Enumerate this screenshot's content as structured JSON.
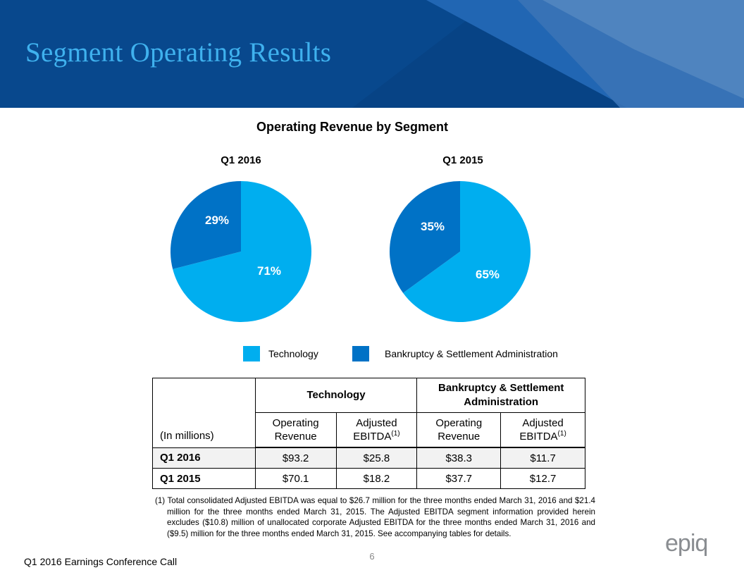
{
  "header": {
    "title": "Segment Operating Results",
    "colors": {
      "band": "#074385",
      "accent": "#2166b3",
      "title": "#3fb1ee"
    }
  },
  "chart": {
    "title": "Operating Revenue by Segment"
  },
  "chart_data": [
    {
      "type": "pie",
      "title": "Q1 2016",
      "categories": [
        "Technology",
        "Bankruptcy & Settlement Administration"
      ],
      "values": [
        71,
        29
      ],
      "labels": [
        "71%",
        "29%"
      ],
      "colors": [
        "#00aeef",
        "#0072c6"
      ],
      "legend": "bottom"
    },
    {
      "type": "pie",
      "title": "Q1 2015",
      "categories": [
        "Technology",
        "Bankruptcy & Settlement Administration"
      ],
      "values": [
        65,
        35
      ],
      "labels": [
        "65%",
        "35%"
      ],
      "colors": [
        "#00aeef",
        "#0072c6"
      ],
      "legend": "bottom"
    }
  ],
  "legend": [
    {
      "label": "Technology",
      "color": "#00aeef"
    },
    {
      "label": "Bankruptcy & Settlement Administration",
      "color": "#0072c6"
    }
  ],
  "table": {
    "corner": "(In millions)",
    "groups": [
      "Technology",
      "Bankruptcy & Settlement Administration"
    ],
    "sub": {
      "op_rev_1": "Operating",
      "op_rev_2": "Revenue",
      "ebitda_1": "Adjusted",
      "ebitda_2": "EBITDA",
      "sup": "(1)"
    },
    "rows": [
      {
        "label": "Q1 2016",
        "values": [
          "$93.2",
          "$25.8",
          "$38.3",
          "$11.7"
        ]
      },
      {
        "label": "Q1 2015",
        "values": [
          "$70.1",
          "$18.2",
          "$37.7",
          "$12.7"
        ]
      }
    ]
  },
  "footnote": "(1) Total consolidated Adjusted EBITDA was equal to $26.7 million for the three months ended March 31, 2016 and $21.4 million for the three months ended March 31, 2015. The Adjusted EBITDA segment information provided herein excludes ($10.8) million of unallocated corporate Adjusted EBITDA for the three months ended March 31, 2016 and ($9.5) million for the three months ended March 31, 2015. See accompanying tables for details.",
  "footer": {
    "page_number": "6",
    "left_text": "Q1 2016 Earnings Conference Call",
    "logo_text": "epiq",
    "logo_color": "#8a8d91"
  }
}
